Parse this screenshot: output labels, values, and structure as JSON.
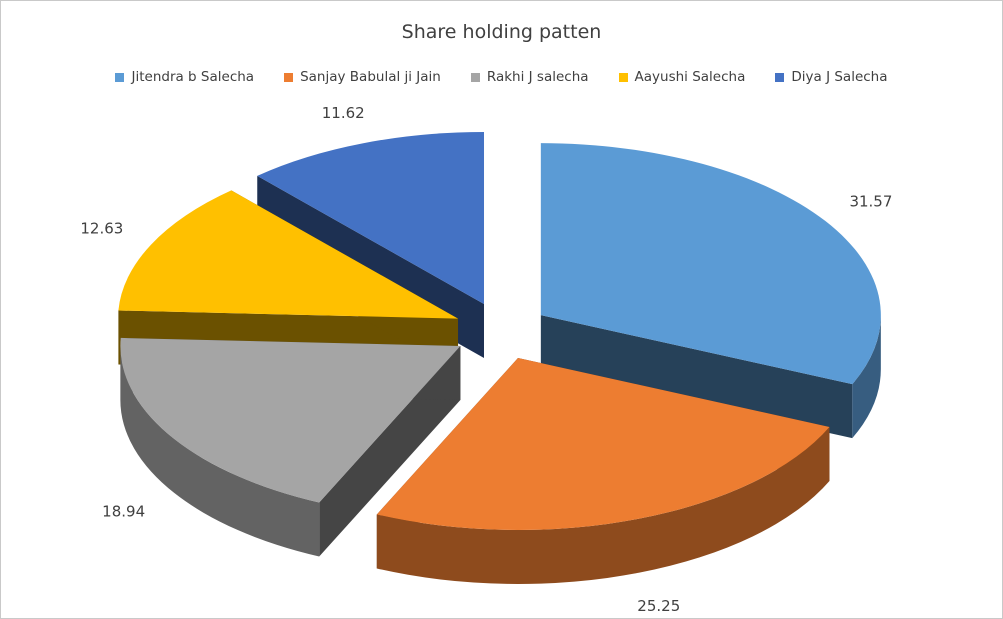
{
  "chart_data": {
    "type": "pie",
    "title": "Share holding patten",
    "categories": [
      "Jitendra b Salecha",
      "Sanjay Babulal ji Jain",
      "Rakhi J salecha",
      "Aayushi Salecha",
      "Diya J Salecha"
    ],
    "values": [
      31.57,
      25.25,
      18.94,
      12.63,
      11.62
    ],
    "value_labels": [
      "31.57",
      "25.25",
      "18.94",
      "12.63",
      "11.62"
    ],
    "colors": [
      "#5B9BD5",
      "#ED7D31",
      "#A5A5A5",
      "#FFC000",
      "#4472C4"
    ],
    "legend_position": "top",
    "style": "3D exploded pie"
  }
}
